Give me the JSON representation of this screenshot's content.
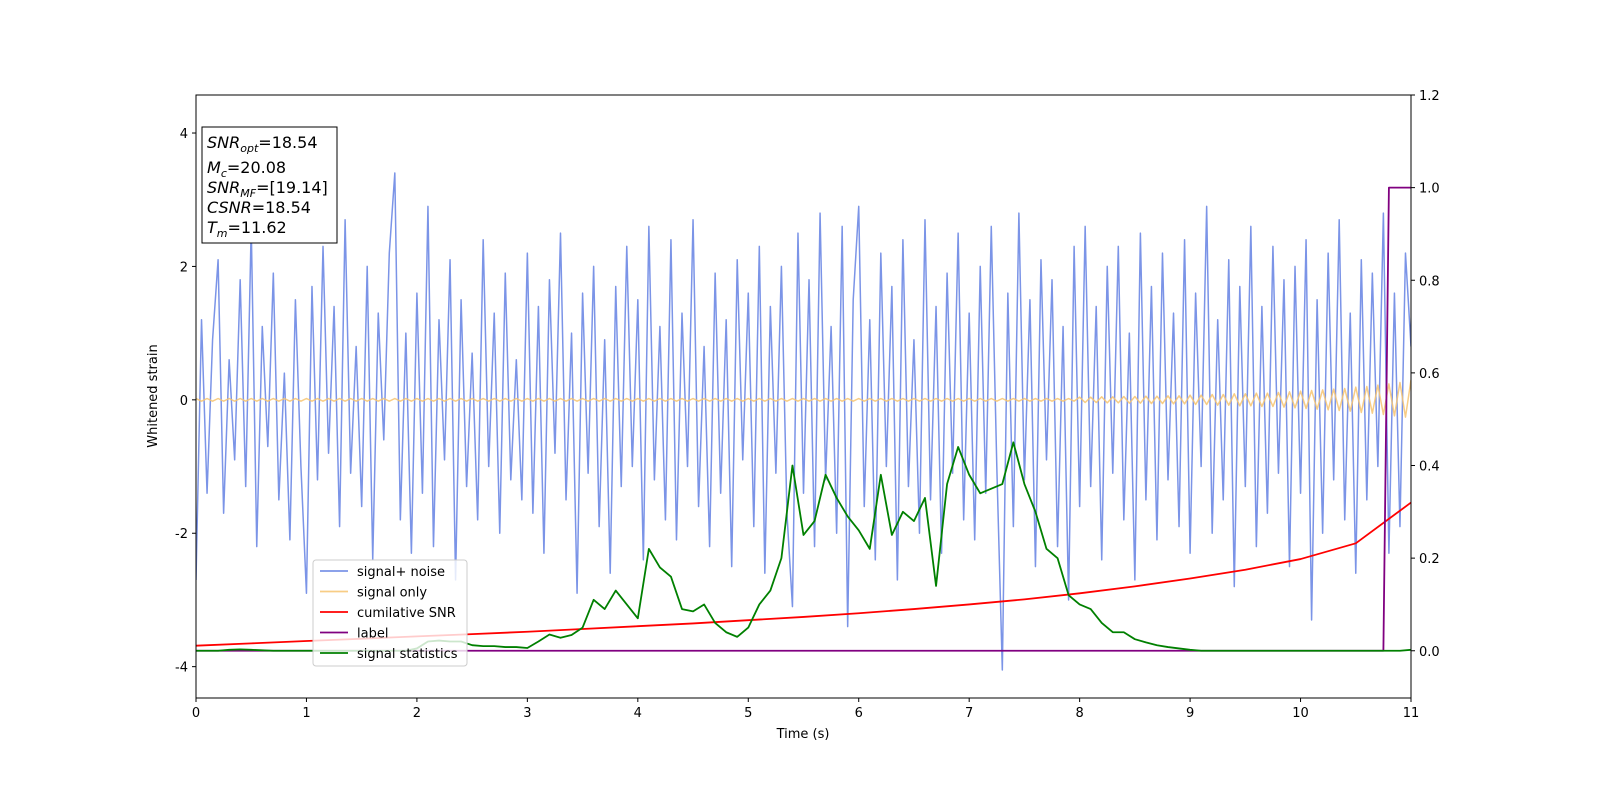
{
  "chart_data": {
    "type": "line",
    "xlabel": "Time (s)",
    "ylabel": "Whitened strain",
    "xlim": [
      0,
      11
    ],
    "xticks": [
      0,
      1,
      2,
      3,
      4,
      5,
      6,
      7,
      8,
      9,
      10,
      11
    ],
    "ylim": [
      -4.47,
      4.57
    ],
    "yticks": [
      -4,
      -2,
      0,
      2,
      4
    ],
    "y2lim": [
      -0.102,
      1.2
    ],
    "y2ticks": [
      {
        "value": 0,
        "label": "0.0"
      },
      {
        "value": 0.2,
        "label": "0.2"
      },
      {
        "value": 0.4,
        "label": "0.4"
      },
      {
        "value": 0.6,
        "label": "0.6"
      },
      {
        "value": 0.8,
        "label": "0.8"
      },
      {
        "value": 1.0,
        "label": "1.0"
      },
      {
        "value": 1.2,
        "label": "1.2"
      }
    ],
    "grid": false,
    "legend": "lower left",
    "annotations": [
      {
        "symbol": "SNR",
        "sub": "opt",
        "text": "=18.54"
      },
      {
        "symbol": "M",
        "sub": "c",
        "text": "=20.08"
      },
      {
        "symbol": "SNR",
        "sub": "MF",
        "text": "=[19.14]"
      },
      {
        "symbol": "CSNR",
        "sub": "",
        "text": "=18.54"
      },
      {
        "symbol": "T",
        "sub": "m",
        "text": "=11.62"
      }
    ],
    "x": [
      0,
      0.05,
      0.1,
      0.15,
      0.2,
      0.25,
      0.3,
      0.35,
      0.4,
      0.45,
      0.5,
      0.55,
      0.6,
      0.65,
      0.7,
      0.75,
      0.8,
      0.85,
      0.9,
      0.95,
      1,
      1.05,
      1.1,
      1.15,
      1.2,
      1.25,
      1.3,
      1.35,
      1.4,
      1.45,
      1.5,
      1.55,
      1.6,
      1.65,
      1.7,
      1.75,
      1.8,
      1.85,
      1.9,
      1.95,
      2,
      2.05,
      2.1,
      2.15,
      2.2,
      2.25,
      2.3,
      2.35,
      2.4,
      2.45,
      2.5,
      2.55,
      2.6,
      2.65,
      2.7,
      2.75,
      2.8,
      2.85,
      2.9,
      2.95,
      3,
      3.05,
      3.1,
      3.15,
      3.2,
      3.25,
      3.3,
      3.35,
      3.4,
      3.45,
      3.5,
      3.55,
      3.6,
      3.65,
      3.7,
      3.75,
      3.8,
      3.85,
      3.9,
      3.95,
      4,
      4.05,
      4.1,
      4.15,
      4.2,
      4.25,
      4.3,
      4.35,
      4.4,
      4.45,
      4.5,
      4.55,
      4.6,
      4.65,
      4.7,
      4.75,
      4.8,
      4.85,
      4.9,
      4.95,
      5,
      5.05,
      5.1,
      5.15,
      5.2,
      5.25,
      5.3,
      5.35,
      5.4,
      5.45,
      5.5,
      5.55,
      5.6,
      5.65,
      5.7,
      5.75,
      5.8,
      5.85,
      5.9,
      5.95,
      6,
      6.05,
      6.1,
      6.15,
      6.2,
      6.25,
      6.3,
      6.35,
      6.4,
      6.45,
      6.5,
      6.55,
      6.6,
      6.65,
      6.7,
      6.75,
      6.8,
      6.85,
      6.9,
      6.95,
      7,
      7.05,
      7.1,
      7.15,
      7.2,
      7.25,
      7.3,
      7.35,
      7.4,
      7.45,
      7.5,
      7.55,
      7.6,
      7.65,
      7.7,
      7.75,
      7.8,
      7.85,
      7.9,
      7.95,
      8,
      8.05,
      8.1,
      8.15,
      8.2,
      8.25,
      8.3,
      8.35,
      8.4,
      8.45,
      8.5,
      8.55,
      8.6,
      8.65,
      8.7,
      8.75,
      8.8,
      8.85,
      8.9,
      8.95,
      9,
      9.05,
      9.1,
      9.15,
      9.2,
      9.25,
      9.3,
      9.35,
      9.4,
      9.45,
      9.5,
      9.55,
      9.6,
      9.65,
      9.7,
      9.75,
      9.8,
      9.85,
      9.9,
      9.95,
      10,
      10.05,
      10.1,
      10.15,
      10.2,
      10.25,
      10.3,
      10.35,
      10.4,
      10.45,
      10.5,
      10.55,
      10.6,
      10.65,
      10.7,
      10.75,
      10.8,
      10.85,
      10.9,
      10.95,
      11
    ],
    "series": [
      {
        "name": "signal+ noise",
        "color": "#7b94e7",
        "values": [
          -2.7,
          1.2,
          -1.4,
          0.9,
          2.1,
          -1.7,
          0.6,
          -0.9,
          1.8,
          -1.3,
          2.6,
          -2.2,
          1.1,
          -0.7,
          1.9,
          -1.5,
          0.4,
          -2.1,
          1.5,
          -1.0,
          -2.9,
          1.7,
          -1.2,
          2.3,
          -0.8,
          1.4,
          -1.9,
          2.7,
          -1.1,
          0.8,
          -1.6,
          2.0,
          -2.4,
          1.3,
          -0.6,
          2.2,
          3.4,
          -1.8,
          1.0,
          -2.3,
          1.6,
          -1.4,
          2.9,
          -2.2,
          1.2,
          -0.9,
          2.1,
          -2.7,
          1.5,
          -1.3,
          0.7,
          -1.8,
          2.4,
          -1.0,
          1.3,
          -2.0,
          1.9,
          -1.2,
          0.6,
          -1.5,
          2.2,
          -1.7,
          1.4,
          -2.3,
          1.8,
          -0.8,
          2.5,
          -1.5,
          1.0,
          -2.9,
          1.6,
          -1.1,
          2.0,
          -1.9,
          0.9,
          -2.6,
          1.7,
          -1.3,
          2.3,
          -1.0,
          1.5,
          -2.4,
          2.6,
          -1.2,
          1.1,
          -1.8,
          2.4,
          -2.1,
          1.3,
          -1.0,
          2.7,
          -1.6,
          0.8,
          -2.2,
          1.9,
          -1.4,
          1.2,
          -2.5,
          2.1,
          -0.9,
          1.6,
          -1.9,
          2.3,
          -2.6,
          1.4,
          -1.1,
          2.0,
          -1.7,
          -3.1,
          2.5,
          -1.4,
          1.8,
          -2.2,
          2.8,
          -1.2,
          1.1,
          -2.0,
          2.6,
          -3.4,
          1.5,
          2.9,
          -1.6,
          1.2,
          -2.4,
          2.2,
          -1.0,
          1.7,
          -2.7,
          2.4,
          -1.3,
          0.9,
          -2.0,
          2.7,
          -1.5,
          1.4,
          -2.3,
          1.9,
          -1.1,
          2.5,
          -1.8,
          1.3,
          -2.1,
          2.0,
          -1.4,
          2.6,
          -1.0,
          -4.05,
          1.6,
          -1.9,
          2.8,
          -1.2,
          1.5,
          -2.5,
          2.1,
          -0.9,
          1.8,
          -2.2,
          1.1,
          -3.0,
          2.3,
          -1.6,
          2.6,
          -1.3,
          1.4,
          -2.4,
          2.0,
          -1.1,
          2.3,
          -1.8,
          1.0,
          -2.7,
          2.5,
          -1.5,
          1.7,
          -2.1,
          2.2,
          -1.2,
          1.3,
          -1.9,
          2.4,
          -2.3,
          1.6,
          -1.0,
          2.9,
          -2.0,
          1.2,
          -1.5,
          2.1,
          -2.8,
          1.7,
          -1.3,
          2.6,
          -2.2,
          1.4,
          -1.7,
          2.3,
          -1.1,
          1.8,
          -2.5,
          2.0,
          -1.4,
          2.4,
          -3.3,
          1.5,
          -2.0,
          2.2,
          -1.2,
          2.7,
          -1.8,
          1.3,
          -2.6,
          2.1,
          -1.5,
          1.9,
          -1.0,
          2.8,
          -2.3,
          1.6,
          -1.9,
          2.2,
          0.8
        ]
      },
      {
        "name": "signal only",
        "color": "#f7c470",
        "values": [
          0.02,
          -0.02,
          0.02,
          -0.02,
          0.02,
          -0.02,
          0.02,
          -0.02,
          0.02,
          -0.02,
          0.02,
          -0.02,
          0.02,
          -0.02,
          0.02,
          -0.02,
          0.02,
          -0.02,
          0.02,
          -0.02,
          0.02,
          -0.02,
          0.02,
          -0.02,
          0.02,
          -0.02,
          0.02,
          -0.02,
          0.02,
          -0.02,
          0.02,
          -0.02,
          0.02,
          -0.02,
          0.02,
          -0.02,
          0.02,
          -0.02,
          0.02,
          -0.02,
          0.02,
          -0.02,
          0.02,
          -0.02,
          0.02,
          -0.02,
          0.02,
          -0.02,
          0.02,
          -0.02,
          0.02,
          -0.02,
          0.02,
          -0.02,
          0.02,
          -0.02,
          0.02,
          -0.02,
          0.02,
          -0.02,
          0.02,
          -0.02,
          0.02,
          -0.02,
          0.02,
          -0.02,
          0.02,
          -0.02,
          0.02,
          -0.02,
          0.02,
          -0.02,
          0.02,
          -0.02,
          0.02,
          -0.02,
          0.02,
          -0.02,
          0.02,
          -0.02,
          0.02,
          -0.02,
          0.02,
          -0.02,
          0.02,
          -0.02,
          0.02,
          -0.02,
          0.02,
          -0.02,
          0.02,
          -0.02,
          0.02,
          -0.02,
          0.02,
          -0.02,
          0.02,
          -0.02,
          0.02,
          -0.02,
          0.02,
          -0.02,
          0.02,
          -0.02,
          0.02,
          -0.02,
          0.02,
          -0.02,
          0.02,
          -0.02,
          0.02,
          -0.02,
          0.02,
          -0.02,
          0.02,
          -0.02,
          0.02,
          -0.02,
          0.02,
          -0.02,
          0.02,
          -0.02,
          0.02,
          -0.02,
          0.02,
          -0.02,
          0.02,
          -0.02,
          0.02,
          -0.02,
          0.02,
          -0.02,
          0.02,
          -0.02,
          0.02,
          -0.02,
          0.02,
          -0.02,
          0.02,
          -0.02,
          0.02,
          -0.02,
          0.02,
          -0.02,
          0.02,
          -0.02,
          0.02,
          -0.02,
          0.02,
          -0.02,
          0.02,
          -0.02,
          0.02,
          -0.02,
          0.02,
          -0.02,
          0.02,
          -0.02,
          0.02,
          -0.02,
          0.04,
          -0.04,
          0.04,
          -0.04,
          0.045,
          -0.045,
          0.045,
          -0.045,
          0.05,
          -0.05,
          0.05,
          -0.05,
          0.055,
          -0.055,
          0.055,
          -0.055,
          0.06,
          -0.06,
          0.06,
          -0.06,
          0.07,
          -0.07,
          0.07,
          -0.07,
          0.08,
          -0.08,
          0.08,
          -0.08,
          0.09,
          -0.09,
          0.09,
          -0.09,
          0.1,
          -0.1,
          0.1,
          -0.1,
          0.11,
          -0.11,
          0.12,
          -0.12,
          0.13,
          -0.13,
          0.14,
          -0.14,
          0.15,
          -0.15,
          0.16,
          -0.16,
          0.17,
          -0.17,
          0.19,
          -0.19,
          0.2,
          -0.2,
          0.22,
          -0.22,
          0.24,
          -0.24,
          0.26,
          -0.26,
          0.3
        ]
      },
      {
        "name": "cumilative SNR",
        "color": "#ff0000",
        "axis": "y2",
        "x": [
          0,
          0.5,
          1,
          1.5,
          2,
          2.5,
          3,
          3.5,
          4,
          4.5,
          5,
          5.5,
          6,
          6.5,
          7,
          7.5,
          8,
          8.5,
          9,
          9.5,
          10,
          10.5,
          11
        ],
        "values": [
          0.011,
          0.016,
          0.021,
          0.026,
          0.031,
          0.036,
          0.041,
          0.047,
          0.053,
          0.059,
          0.066,
          0.073,
          0.081,
          0.09,
          0.1,
          0.111,
          0.124,
          0.139,
          0.156,
          0.175,
          0.198,
          0.232,
          0.32
        ]
      },
      {
        "name": "label",
        "color": "#800080",
        "axis": "y2",
        "x": [
          0,
          10.75,
          10.8,
          11
        ],
        "values": [
          0,
          0,
          1,
          1
        ]
      },
      {
        "name": "signal statistics",
        "color": "#008000",
        "axis": "y2",
        "x": [
          0,
          0.1,
          0.2,
          0.3,
          0.4,
          0.5,
          0.6,
          0.7,
          0.8,
          0.9,
          1,
          1.1,
          1.2,
          1.3,
          1.4,
          1.5,
          1.6,
          1.7,
          1.8,
          1.9,
          2,
          2.1,
          2.2,
          2.3,
          2.4,
          2.5,
          2.6,
          2.7,
          2.8,
          2.9,
          3,
          3.1,
          3.2,
          3.3,
          3.4,
          3.5,
          3.6,
          3.7,
          3.8,
          3.9,
          4,
          4.1,
          4.2,
          4.3,
          4.4,
          4.5,
          4.6,
          4.7,
          4.8,
          4.9,
          5,
          5.1,
          5.2,
          5.3,
          5.4,
          5.5,
          5.6,
          5.7,
          5.8,
          5.9,
          6,
          6.1,
          6.2,
          6.3,
          6.4,
          6.5,
          6.6,
          6.7,
          6.8,
          6.9,
          7,
          7.1,
          7.2,
          7.3,
          7.4,
          7.5,
          7.6,
          7.7,
          7.8,
          7.9,
          8,
          8.1,
          8.2,
          8.3,
          8.4,
          8.5,
          8.6,
          8.7,
          8.8,
          8.9,
          9,
          9.1,
          9.2,
          9.3,
          9.4,
          9.5,
          9.6,
          9.7,
          9.8,
          9.9,
          10,
          10.1,
          10.2,
          10.3,
          10.4,
          10.5,
          10.6,
          10.7,
          10.8,
          10.9,
          11
        ],
        "values": [
          0,
          0,
          0,
          0.002,
          0.003,
          0.002,
          0.001,
          0,
          0,
          0,
          0,
          0,
          0,
          0,
          0,
          0,
          0,
          0,
          0,
          0,
          0.005,
          0.02,
          0.022,
          0.02,
          0.02,
          0.012,
          0.01,
          0.01,
          0.008,
          0.008,
          0.006,
          0.02,
          0.035,
          0.028,
          0.034,
          0.05,
          0.11,
          0.09,
          0.13,
          0.1,
          0.07,
          0.22,
          0.18,
          0.16,
          0.09,
          0.085,
          0.1,
          0.06,
          0.04,
          0.03,
          0.05,
          0.1,
          0.13,
          0.2,
          0.4,
          0.25,
          0.28,
          0.38,
          0.33,
          0.29,
          0.26,
          0.22,
          0.38,
          0.25,
          0.3,
          0.28,
          0.33,
          0.14,
          0.36,
          0.44,
          0.38,
          0.34,
          0.35,
          0.36,
          0.45,
          0.36,
          0.3,
          0.22,
          0.2,
          0.12,
          0.1,
          0.09,
          0.06,
          0.04,
          0.04,
          0.025,
          0.018,
          0.012,
          0.008,
          0.005,
          0.002,
          0,
          0,
          0,
          0,
          0,
          0,
          0,
          0,
          0,
          0,
          0,
          0,
          0,
          0,
          0,
          0,
          0,
          0,
          0,
          0.002
        ]
      }
    ]
  }
}
